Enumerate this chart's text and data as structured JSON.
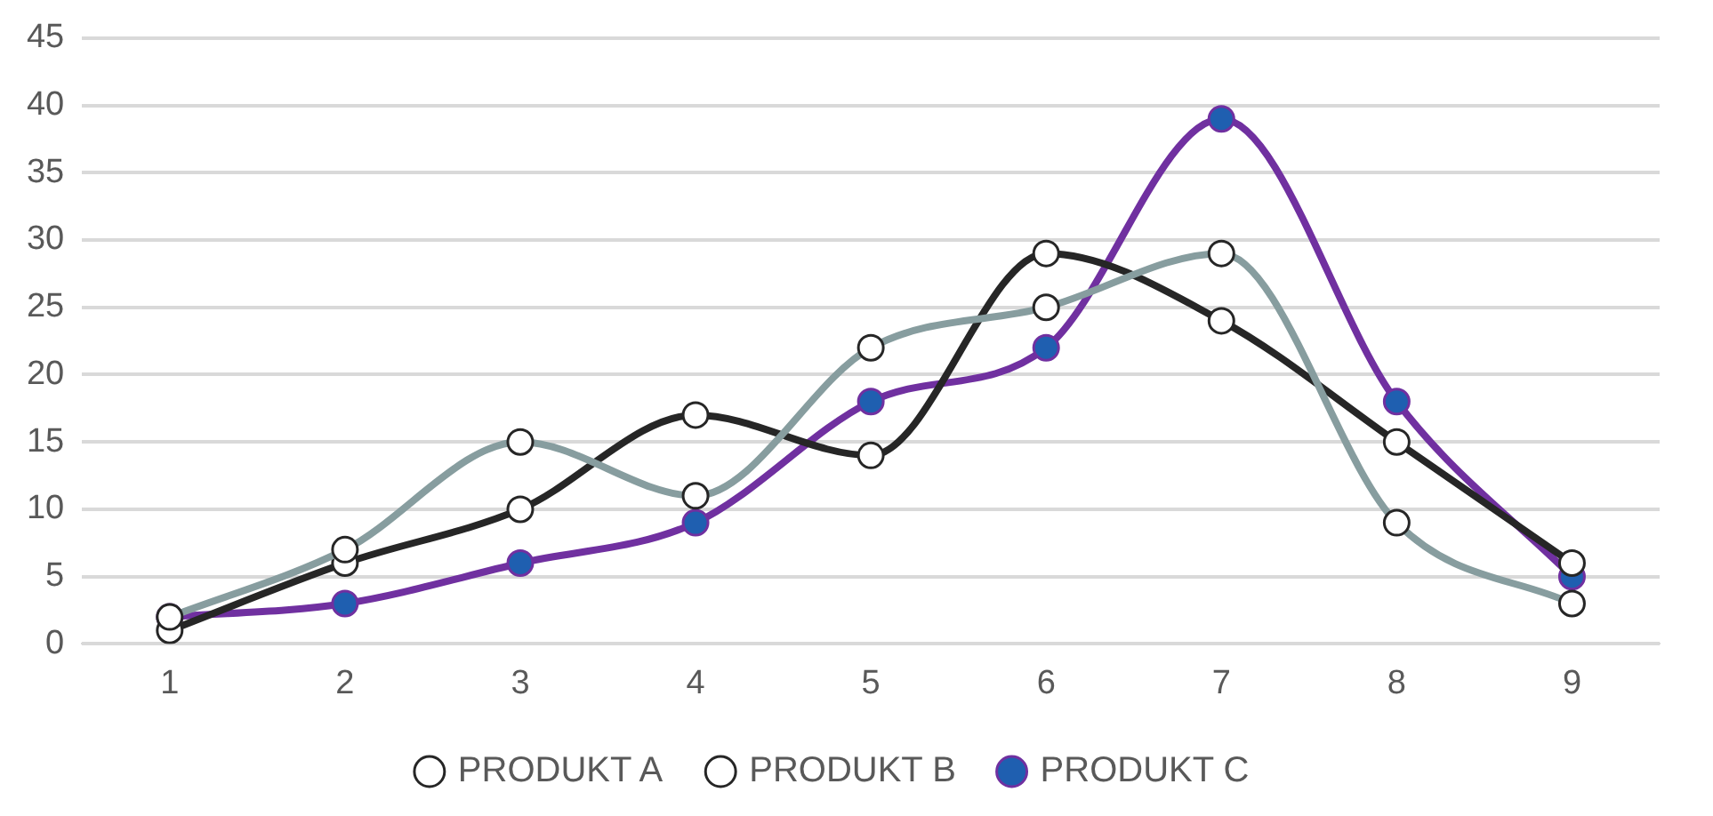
{
  "chart_data": {
    "type": "line",
    "categories": [
      "1",
      "2",
      "3",
      "4",
      "5",
      "6",
      "7",
      "8",
      "9"
    ],
    "series": [
      {
        "name": "PRODUKT A",
        "color": "#879d9f",
        "values": [
          2,
          7,
          15,
          11,
          22,
          25,
          29,
          9,
          3
        ]
      },
      {
        "name": "PRODUKT B",
        "color": "#262626",
        "values": [
          1,
          6,
          10,
          17,
          14,
          29,
          24,
          15,
          6
        ]
      },
      {
        "name": "PRODUKT C",
        "color": "#7030a0",
        "values": [
          2,
          3,
          6,
          9,
          18,
          22,
          39,
          18,
          5
        ]
      }
    ],
    "ylim": [
      0,
      45
    ],
    "yticks": [
      0,
      5,
      10,
      15,
      20,
      25,
      30,
      35,
      40,
      45
    ],
    "grid": "y",
    "legend": "bottom",
    "marker": "circle"
  }
}
